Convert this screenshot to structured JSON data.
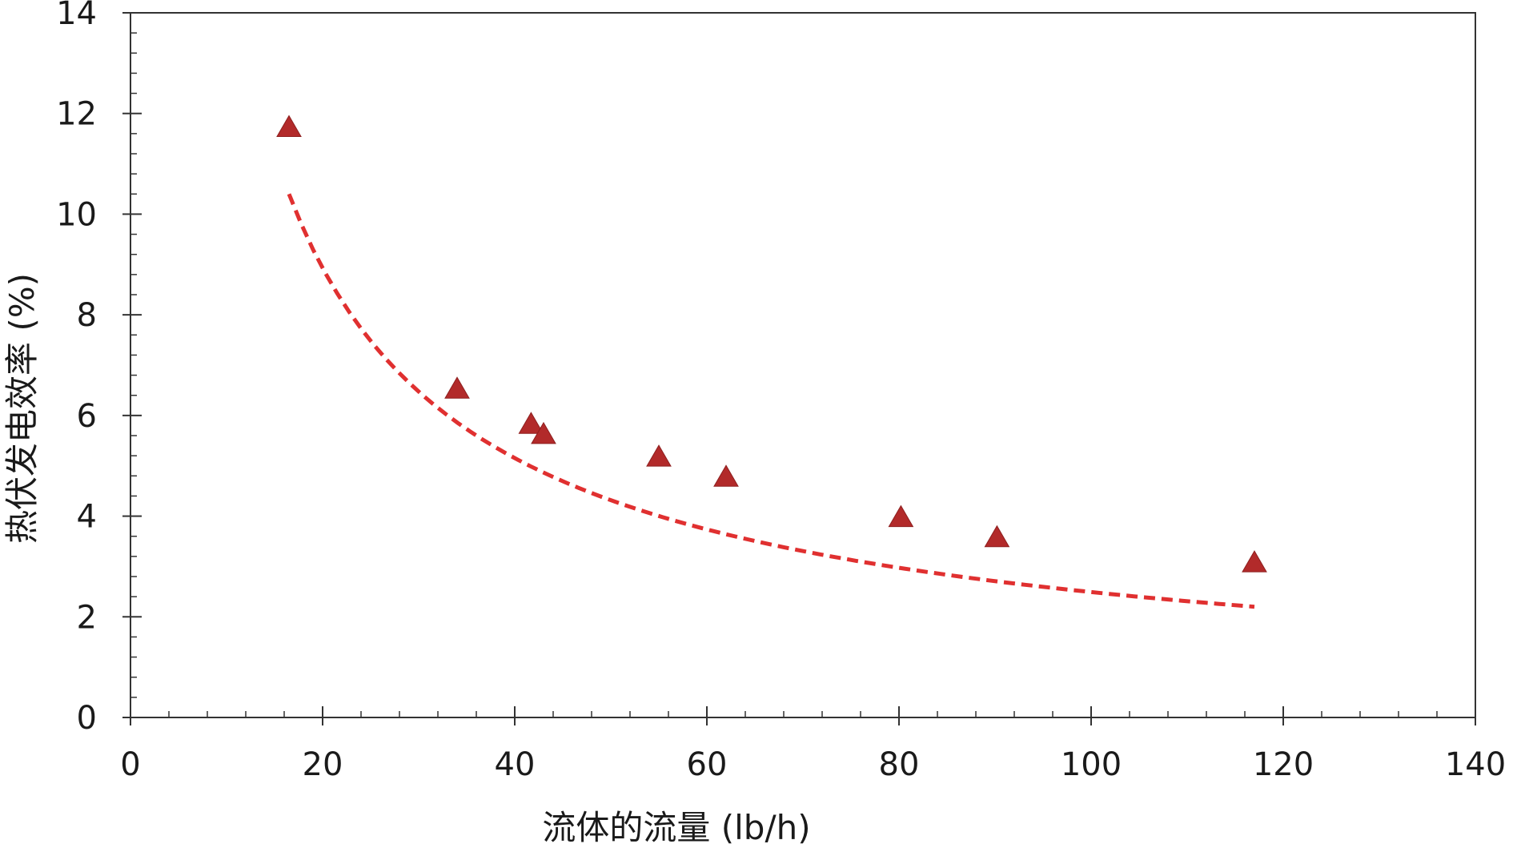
{
  "chart_data": {
    "type": "scatter",
    "title": "",
    "xlabel": "流体的流量 (lb/h)",
    "ylabel": "热伏发电效率 (%)",
    "xlim": [
      0,
      140
    ],
    "ylim": [
      0,
      14
    ],
    "x_ticks": [
      0,
      20,
      40,
      60,
      80,
      100,
      120,
      140
    ],
    "y_ticks": [
      0,
      2,
      4,
      6,
      8,
      10,
      12,
      14
    ],
    "x_minor_step": 4,
    "y_minor_step": 0.4,
    "grid": false,
    "series": [
      {
        "marker": "triangle",
        "color": "#b22a2a",
        "points": [
          {
            "x": 16.5,
            "y": 11.7
          },
          {
            "x": 34.0,
            "y": 6.5
          },
          {
            "x": 41.7,
            "y": 5.8
          },
          {
            "x": 43.0,
            "y": 5.6
          },
          {
            "x": 55.0,
            "y": 5.15
          },
          {
            "x": 62.0,
            "y": 4.75
          },
          {
            "x": 80.2,
            "y": 3.95
          },
          {
            "x": 90.2,
            "y": 3.55
          },
          {
            "x": 117.0,
            "y": 3.05
          }
        ]
      }
    ],
    "trendline": {
      "style": "dashed",
      "color": "#e03030",
      "x_range": [
        16.5,
        117.0
      ],
      "y_at_start": 10.4,
      "y_at_end": 2.2
    }
  }
}
